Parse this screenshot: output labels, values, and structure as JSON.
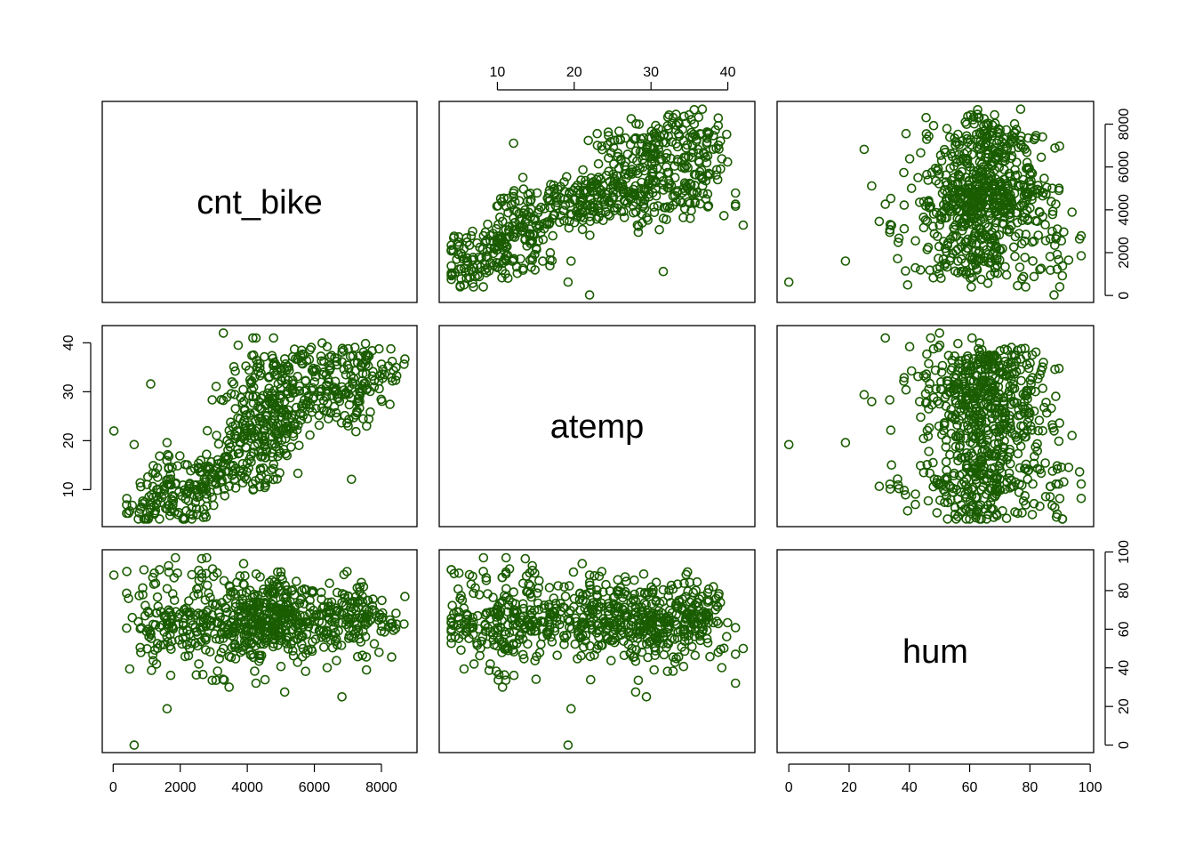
{
  "chart_data": {
    "type": "scatter",
    "subtype": "pairs-matrix",
    "point_color": "#1a5c00",
    "marker": "open-circle",
    "variables": [
      {
        "name": "cnt_bike",
        "label": "cnt_bike",
        "range": [
          22,
          8714
        ],
        "ticks": [
          0,
          2000,
          4000,
          6000,
          8000
        ]
      },
      {
        "name": "atemp",
        "label": "atemp",
        "range": [
          3.95,
          42.0
        ],
        "ticks": [
          10,
          20,
          30,
          40
        ]
      },
      {
        "name": "hum",
        "label": "hum",
        "range": [
          0,
          97.25
        ],
        "ticks": [
          0,
          20,
          40,
          60,
          80,
          100
        ]
      }
    ],
    "axes": {
      "top": {
        "column": 1,
        "variable": "atemp"
      },
      "bottom": [
        {
          "column": 0,
          "variable": "cnt_bike"
        },
        {
          "column": 2,
          "variable": "hum"
        }
      ],
      "left": {
        "row": 1,
        "variable": "atemp"
      },
      "right": [
        {
          "row": 0,
          "variable": "cnt_bike"
        },
        {
          "row": 2,
          "variable": "hum"
        }
      ]
    },
    "n_points": 731,
    "clusters": [
      {
        "atemp": [
          3.95,
          16
        ],
        "hum": [
          35,
          95
        ],
        "cnt": [
          400,
          3600
        ],
        "n": 170
      },
      {
        "atemp": [
          10,
          24
        ],
        "hum": [
          40,
          90
        ],
        "cnt": [
          2500,
          5600
        ],
        "n": 150
      },
      {
        "atemp": [
          20,
          38
        ],
        "hum": [
          40,
          90
        ],
        "cnt": [
          3500,
          6500
        ],
        "n": 200
      },
      {
        "atemp": [
          24,
          38
        ],
        "hum": [
          45,
          85
        ],
        "cnt": [
          5500,
          8500
        ],
        "n": 160
      },
      {
        "atemp": [
          28,
          42
        ],
        "hum": [
          35,
          75
        ],
        "cnt": [
          3000,
          5000
        ],
        "n": 30
      }
    ],
    "extra_points": [
      {
        "cnt": 22,
        "atemp": 22,
        "hum": 88
      },
      {
        "cnt": 627,
        "atemp": 19.2,
        "hum": 0
      },
      {
        "cnt": 1607,
        "atemp": 19.6,
        "hum": 18.8
      },
      {
        "cnt": 7108,
        "atemp": 12.1,
        "hum": 69
      },
      {
        "cnt": 1120,
        "atemp": 31.6,
        "hum": 58
      },
      {
        "cnt": 3285,
        "atemp": 42.0,
        "hum": 50
      },
      {
        "cnt": 6824,
        "atemp": 29.4,
        "hum": 25
      },
      {
        "cnt": 5115,
        "atemp": 28.0,
        "hum": 27.5
      }
    ]
  }
}
